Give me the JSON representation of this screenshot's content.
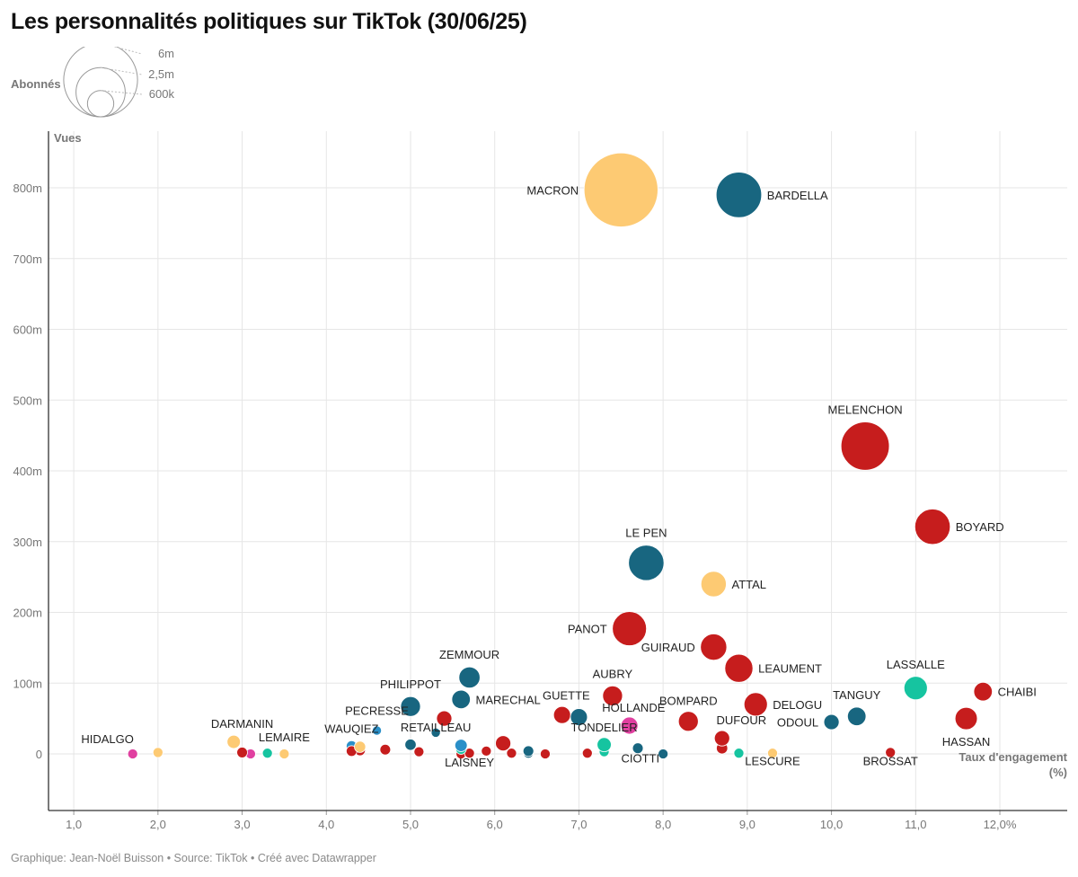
{
  "title": "Les personnalités politiques sur TikTok (30/06/25)",
  "footer": "Graphique: Jean-Noël Buisson • Source: TikTok • Créé avec Datawrapper",
  "colors": {
    "renaissance": "#fdca73",
    "rn": "#186680",
    "lfi": "#c61d1d",
    "ecolo": "#16c4a0",
    "ps": "#e040a0",
    "lr": "#2a8fc8",
    "grid": "#e6e6e6",
    "axis": "#333333"
  },
  "chart_data": {
    "type": "scatter",
    "title": "Les personnalités politiques sur TikTok (30/06/25)",
    "xlabel": "Taux d'engagement",
    "xlabel_unit": "(%)",
    "ylabel": "Vues",
    "xlim": [
      0.7,
      12.8
    ],
    "ylim": [
      -80,
      880
    ],
    "x_ticks": [
      1,
      2,
      3,
      4,
      5,
      6,
      7,
      8,
      9,
      10,
      11,
      12
    ],
    "x_tick_labels": [
      "1,0",
      "2,0",
      "3,0",
      "4,0",
      "5,0",
      "6,0",
      "7,0",
      "8,0",
      "9,0",
      "10,0",
      "11,0",
      "12,0%"
    ],
    "y_ticks": [
      0,
      100,
      200,
      300,
      400,
      500,
      600,
      700,
      800
    ],
    "y_tick_labels": [
      "0",
      "100m",
      "200m",
      "300m",
      "400m",
      "500m",
      "600m",
      "700m",
      "800m"
    ],
    "size_legend": {
      "title": "Abonnés",
      "entries": [
        {
          "label": "6m",
          "value": 6.0
        },
        {
          "label": "2,5m",
          "value": 2.5
        },
        {
          "label": "600k",
          "value": 0.6
        }
      ]
    },
    "points": [
      {
        "name": "MACRON",
        "x": 7.5,
        "y": 797,
        "subs": 6.0,
        "party": "renaissance",
        "label": "left"
      },
      {
        "name": "BARDELLA",
        "x": 8.9,
        "y": 790,
        "subs": 2.1,
        "party": "rn",
        "label": "right"
      },
      {
        "name": "MELENCHON",
        "x": 10.4,
        "y": 435,
        "subs": 2.4,
        "party": "lfi",
        "label": "top"
      },
      {
        "name": "BOYARD",
        "x": 11.2,
        "y": 321,
        "subs": 1.2,
        "party": "lfi",
        "label": "right"
      },
      {
        "name": "LE PEN",
        "x": 7.8,
        "y": 270,
        "subs": 1.2,
        "party": "rn",
        "label": "top"
      },
      {
        "name": "ATTAL",
        "x": 8.6,
        "y": 240,
        "subs": 0.55,
        "party": "renaissance",
        "label": "right"
      },
      {
        "name": "PANOT",
        "x": 7.6,
        "y": 177,
        "subs": 1.1,
        "party": "lfi",
        "label": "left"
      },
      {
        "name": "GUIRAUD",
        "x": 8.6,
        "y": 151,
        "subs": 0.6,
        "party": "lfi",
        "label": "left"
      },
      {
        "name": "LEAUMENT",
        "x": 8.9,
        "y": 121,
        "subs": 0.7,
        "party": "lfi",
        "label": "right"
      },
      {
        "name": "ZEMMOUR",
        "x": 5.7,
        "y": 108,
        "subs": 0.35,
        "party": "rn",
        "label": "top"
      },
      {
        "name": "LASSALLE",
        "x": 11.0,
        "y": 93,
        "subs": 0.45,
        "party": "ecolo",
        "label": "top"
      },
      {
        "name": "CHAIBI",
        "x": 11.8,
        "y": 88,
        "subs": 0.25,
        "party": "lfi",
        "label": "right"
      },
      {
        "name": "AUBRY",
        "x": 7.4,
        "y": 82,
        "subs": 0.3,
        "party": "lfi",
        "label": "top"
      },
      {
        "name": "MARECHAL",
        "x": 5.6,
        "y": 77,
        "subs": 0.25,
        "party": "rn",
        "label": "right"
      },
      {
        "name": "DELOGU",
        "x": 9.1,
        "y": 70,
        "subs": 0.45,
        "party": "lfi",
        "label": "right"
      },
      {
        "name": "PHILIPPOT",
        "x": 5.0,
        "y": 67,
        "subs": 0.3,
        "party": "rn",
        "label": "top"
      },
      {
        "name": "GUETTE",
        "x": 6.8,
        "y": 55,
        "subs": 0.2,
        "party": "lfi",
        "label": "none"
      },
      {
        "name": "TANGUY",
        "x": 10.3,
        "y": 53,
        "subs": 0.25,
        "party": "rn",
        "label": "top"
      },
      {
        "name": "",
        "x": 7.0,
        "y": 52,
        "subs": 0.2,
        "party": "rn",
        "label": "none"
      },
      {
        "name": "HASSAN",
        "x": 11.6,
        "y": 50,
        "subs": 0.4,
        "party": "lfi",
        "label": "bottom"
      },
      {
        "name": "",
        "x": 5.4,
        "y": 50,
        "subs": 0.15,
        "party": "lfi",
        "label": "none"
      },
      {
        "name": "BOMPARD",
        "x": 8.3,
        "y": 46,
        "subs": 0.3,
        "party": "lfi",
        "label": "none"
      },
      {
        "name": "ODOUL",
        "x": 10.0,
        "y": 45,
        "subs": 0.15,
        "party": "rn",
        "label": "left"
      },
      {
        "name": "HOLLANDE",
        "x": 7.6,
        "y": 40,
        "subs": 0.2,
        "party": "ps",
        "label": "none"
      },
      {
        "name": "PECRESSE",
        "x": 4.6,
        "y": 33,
        "subs": 0.03,
        "party": "lr",
        "label": "none"
      },
      {
        "name": "",
        "x": 5.3,
        "y": 30,
        "subs": 0.03,
        "party": "rn",
        "label": "none"
      },
      {
        "name": "",
        "x": 8.7,
        "y": 22,
        "subs": 0.15,
        "party": "lfi",
        "label": "none"
      },
      {
        "name": "DARMANIN",
        "x": 2.9,
        "y": 17,
        "subs": 0.1,
        "party": "renaissance",
        "label": "none"
      },
      {
        "name": "",
        "x": 6.1,
        "y": 15,
        "subs": 0.15,
        "party": "lfi",
        "label": "none"
      },
      {
        "name": "TONDELIER",
        "x": 7.3,
        "y": 13,
        "subs": 0.12,
        "party": "ecolo",
        "label": "none"
      },
      {
        "name": "",
        "x": 5.0,
        "y": 13,
        "subs": 0.06,
        "party": "rn",
        "label": "none"
      },
      {
        "name": "",
        "x": 5.6,
        "y": 12,
        "subs": 0.08,
        "party": "lr",
        "label": "none"
      },
      {
        "name": "",
        "x": 4.3,
        "y": 11,
        "subs": 0.05,
        "party": "lr",
        "label": "none"
      },
      {
        "name": "",
        "x": 4.4,
        "y": 10,
        "subs": 0.06,
        "party": "renaissance",
        "label": "none"
      },
      {
        "name": "",
        "x": 8.7,
        "y": 8,
        "subs": 0.06,
        "party": "lfi",
        "label": "none"
      },
      {
        "name": "",
        "x": 7.7,
        "y": 8,
        "subs": 0.05,
        "party": "rn",
        "label": "none"
      },
      {
        "name": "",
        "x": 5.6,
        "y": 7,
        "subs": 0.05,
        "party": "ecolo",
        "label": "none"
      },
      {
        "name": "",
        "x": 4.7,
        "y": 6,
        "subs": 0.05,
        "party": "lfi",
        "label": "none"
      },
      {
        "name": "",
        "x": 4.4,
        "y": 5,
        "subs": 0.05,
        "party": "lfi",
        "label": "none"
      },
      {
        "name": "",
        "x": 4.3,
        "y": 4,
        "subs": 0.05,
        "party": "lfi",
        "label": "none"
      },
      {
        "name": "",
        "x": 6.4,
        "y": 4,
        "subs": 0.05,
        "party": "rn",
        "label": "none"
      },
      {
        "name": "",
        "x": 5.9,
        "y": 4,
        "subs": 0.04,
        "party": "lfi",
        "label": "none"
      },
      {
        "name": "",
        "x": 7.3,
        "y": 3,
        "subs": 0.04,
        "party": "ecolo",
        "label": "none"
      },
      {
        "name": "",
        "x": 5.1,
        "y": 3,
        "subs": 0.04,
        "party": "lfi",
        "label": "none"
      },
      {
        "name": "",
        "x": 3.0,
        "y": 2,
        "subs": 0.05,
        "party": "lfi",
        "label": "none"
      },
      {
        "name": "",
        "x": 2.0,
        "y": 2,
        "subs": 0.04,
        "party": "renaissance",
        "label": "none"
      },
      {
        "name": "",
        "x": 3.3,
        "y": 1,
        "subs": 0.04,
        "party": "ecolo",
        "label": "none"
      },
      {
        "name": "",
        "x": 3.1,
        "y": 0,
        "subs": 0.04,
        "party": "ps",
        "label": "none"
      },
      {
        "name": "",
        "x": 3.5,
        "y": 0,
        "subs": 0.04,
        "party": "renaissance",
        "label": "none"
      },
      {
        "name": "",
        "x": 5.6,
        "y": 0,
        "subs": 0.04,
        "party": "lfi",
        "label": "none"
      },
      {
        "name": "",
        "x": 5.7,
        "y": 1,
        "subs": 0.04,
        "party": "lfi",
        "label": "none"
      },
      {
        "name": "",
        "x": 6.2,
        "y": 1,
        "subs": 0.04,
        "party": "lfi",
        "label": "none"
      },
      {
        "name": "",
        "x": 6.4,
        "y": 1,
        "subs": 0.04,
        "party": "rn",
        "label": "none"
      },
      {
        "name": "",
        "x": 6.6,
        "y": 0,
        "subs": 0.04,
        "party": "lfi",
        "label": "none"
      },
      {
        "name": "",
        "x": 7.1,
        "y": 1,
        "subs": 0.04,
        "party": "lfi",
        "label": "none"
      },
      {
        "name": "",
        "x": 8.0,
        "y": 0,
        "subs": 0.04,
        "party": "rn",
        "label": "none"
      },
      {
        "name": "",
        "x": 8.9,
        "y": 1,
        "subs": 0.04,
        "party": "ecolo",
        "label": "none"
      },
      {
        "name": "",
        "x": 9.3,
        "y": 1,
        "subs": 0.04,
        "party": "renaissance",
        "label": "none"
      },
      {
        "name": "",
        "x": 10.7,
        "y": 2,
        "subs": 0.04,
        "party": "lfi",
        "label": "none"
      },
      {
        "name": "HIDALGO",
        "x": 1.7,
        "y": 0,
        "subs": 0.04,
        "party": "ps",
        "label": "none"
      }
    ],
    "annotations": [
      {
        "text": "GUETTE",
        "x": 6.85,
        "y": 77
      },
      {
        "text": "BOMPARD",
        "x": 8.3,
        "y": 69
      },
      {
        "text": "HOLLANDE",
        "x": 7.65,
        "y": 60
      },
      {
        "text": "DUFOUR",
        "x": 8.93,
        "y": 42
      },
      {
        "text": "PECRESSE",
        "x": 4.6,
        "y": 55
      },
      {
        "text": "RETAILLEAU",
        "x": 5.3,
        "y": 32
      },
      {
        "text": "WAUQIEZ",
        "x": 4.3,
        "y": 30
      },
      {
        "text": "DARMANIN",
        "x": 3.0,
        "y": 37
      },
      {
        "text": "LEMAIRE",
        "x": 3.5,
        "y": 18
      },
      {
        "text": "HIDALGO",
        "x": 1.4,
        "y": 15
      },
      {
        "text": "TONDELIER",
        "x": 7.3,
        "y": 32
      },
      {
        "text": "LAISNEY",
        "x": 5.7,
        "y": -18
      },
      {
        "text": "CIOTTI",
        "x": 7.73,
        "y": -12
      },
      {
        "text": "LESCURE",
        "x": 9.3,
        "y": -16
      },
      {
        "text": "BROSSAT",
        "x": 10.7,
        "y": -16
      }
    ]
  }
}
